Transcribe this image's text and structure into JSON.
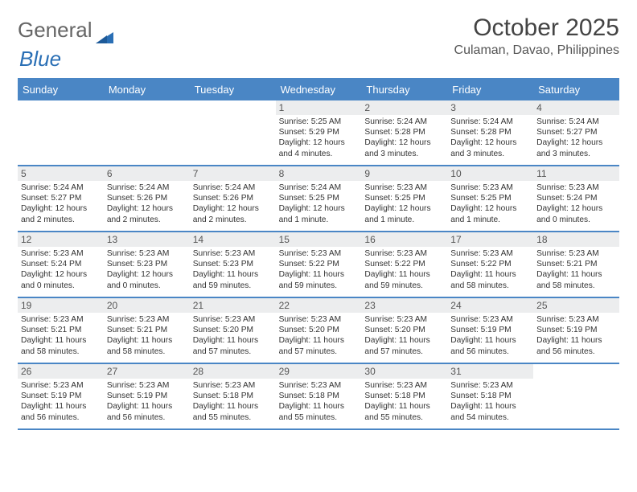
{
  "brand": {
    "part1": "General",
    "part2": "Blue"
  },
  "title": "October 2025",
  "location": "Culaman, Davao, Philippines",
  "colors": {
    "header_bg": "#4a86c5",
    "header_text": "#ffffff",
    "daynum_bg": "#ecedee",
    "border": "#4a86c5",
    "page_bg": "#ffffff",
    "text": "#333333"
  },
  "layout": {
    "columns": 7,
    "leading_blanks": 3,
    "trailing_blanks": 1
  },
  "day_headers": [
    "Sunday",
    "Monday",
    "Tuesday",
    "Wednesday",
    "Thursday",
    "Friday",
    "Saturday"
  ],
  "days": [
    {
      "n": "1",
      "sr": "Sunrise: 5:25 AM",
      "ss": "Sunset: 5:29 PM",
      "dl": "Daylight: 12 hours and 4 minutes."
    },
    {
      "n": "2",
      "sr": "Sunrise: 5:24 AM",
      "ss": "Sunset: 5:28 PM",
      "dl": "Daylight: 12 hours and 3 minutes."
    },
    {
      "n": "3",
      "sr": "Sunrise: 5:24 AM",
      "ss": "Sunset: 5:28 PM",
      "dl": "Daylight: 12 hours and 3 minutes."
    },
    {
      "n": "4",
      "sr": "Sunrise: 5:24 AM",
      "ss": "Sunset: 5:27 PM",
      "dl": "Daylight: 12 hours and 3 minutes."
    },
    {
      "n": "5",
      "sr": "Sunrise: 5:24 AM",
      "ss": "Sunset: 5:27 PM",
      "dl": "Daylight: 12 hours and 2 minutes."
    },
    {
      "n": "6",
      "sr": "Sunrise: 5:24 AM",
      "ss": "Sunset: 5:26 PM",
      "dl": "Daylight: 12 hours and 2 minutes."
    },
    {
      "n": "7",
      "sr": "Sunrise: 5:24 AM",
      "ss": "Sunset: 5:26 PM",
      "dl": "Daylight: 12 hours and 2 minutes."
    },
    {
      "n": "8",
      "sr": "Sunrise: 5:24 AM",
      "ss": "Sunset: 5:25 PM",
      "dl": "Daylight: 12 hours and 1 minute."
    },
    {
      "n": "9",
      "sr": "Sunrise: 5:23 AM",
      "ss": "Sunset: 5:25 PM",
      "dl": "Daylight: 12 hours and 1 minute."
    },
    {
      "n": "10",
      "sr": "Sunrise: 5:23 AM",
      "ss": "Sunset: 5:25 PM",
      "dl": "Daylight: 12 hours and 1 minute."
    },
    {
      "n": "11",
      "sr": "Sunrise: 5:23 AM",
      "ss": "Sunset: 5:24 PM",
      "dl": "Daylight: 12 hours and 0 minutes."
    },
    {
      "n": "12",
      "sr": "Sunrise: 5:23 AM",
      "ss": "Sunset: 5:24 PM",
      "dl": "Daylight: 12 hours and 0 minutes."
    },
    {
      "n": "13",
      "sr": "Sunrise: 5:23 AM",
      "ss": "Sunset: 5:23 PM",
      "dl": "Daylight: 12 hours and 0 minutes."
    },
    {
      "n": "14",
      "sr": "Sunrise: 5:23 AM",
      "ss": "Sunset: 5:23 PM",
      "dl": "Daylight: 11 hours and 59 minutes."
    },
    {
      "n": "15",
      "sr": "Sunrise: 5:23 AM",
      "ss": "Sunset: 5:22 PM",
      "dl": "Daylight: 11 hours and 59 minutes."
    },
    {
      "n": "16",
      "sr": "Sunrise: 5:23 AM",
      "ss": "Sunset: 5:22 PM",
      "dl": "Daylight: 11 hours and 59 minutes."
    },
    {
      "n": "17",
      "sr": "Sunrise: 5:23 AM",
      "ss": "Sunset: 5:22 PM",
      "dl": "Daylight: 11 hours and 58 minutes."
    },
    {
      "n": "18",
      "sr": "Sunrise: 5:23 AM",
      "ss": "Sunset: 5:21 PM",
      "dl": "Daylight: 11 hours and 58 minutes."
    },
    {
      "n": "19",
      "sr": "Sunrise: 5:23 AM",
      "ss": "Sunset: 5:21 PM",
      "dl": "Daylight: 11 hours and 58 minutes."
    },
    {
      "n": "20",
      "sr": "Sunrise: 5:23 AM",
      "ss": "Sunset: 5:21 PM",
      "dl": "Daylight: 11 hours and 58 minutes."
    },
    {
      "n": "21",
      "sr": "Sunrise: 5:23 AM",
      "ss": "Sunset: 5:20 PM",
      "dl": "Daylight: 11 hours and 57 minutes."
    },
    {
      "n": "22",
      "sr": "Sunrise: 5:23 AM",
      "ss": "Sunset: 5:20 PM",
      "dl": "Daylight: 11 hours and 57 minutes."
    },
    {
      "n": "23",
      "sr": "Sunrise: 5:23 AM",
      "ss": "Sunset: 5:20 PM",
      "dl": "Daylight: 11 hours and 57 minutes."
    },
    {
      "n": "24",
      "sr": "Sunrise: 5:23 AM",
      "ss": "Sunset: 5:19 PM",
      "dl": "Daylight: 11 hours and 56 minutes."
    },
    {
      "n": "25",
      "sr": "Sunrise: 5:23 AM",
      "ss": "Sunset: 5:19 PM",
      "dl": "Daylight: 11 hours and 56 minutes."
    },
    {
      "n": "26",
      "sr": "Sunrise: 5:23 AM",
      "ss": "Sunset: 5:19 PM",
      "dl": "Daylight: 11 hours and 56 minutes."
    },
    {
      "n": "27",
      "sr": "Sunrise: 5:23 AM",
      "ss": "Sunset: 5:19 PM",
      "dl": "Daylight: 11 hours and 56 minutes."
    },
    {
      "n": "28",
      "sr": "Sunrise: 5:23 AM",
      "ss": "Sunset: 5:18 PM",
      "dl": "Daylight: 11 hours and 55 minutes."
    },
    {
      "n": "29",
      "sr": "Sunrise: 5:23 AM",
      "ss": "Sunset: 5:18 PM",
      "dl": "Daylight: 11 hours and 55 minutes."
    },
    {
      "n": "30",
      "sr": "Sunrise: 5:23 AM",
      "ss": "Sunset: 5:18 PM",
      "dl": "Daylight: 11 hours and 55 minutes."
    },
    {
      "n": "31",
      "sr": "Sunrise: 5:23 AM",
      "ss": "Sunset: 5:18 PM",
      "dl": "Daylight: 11 hours and 54 minutes."
    }
  ]
}
